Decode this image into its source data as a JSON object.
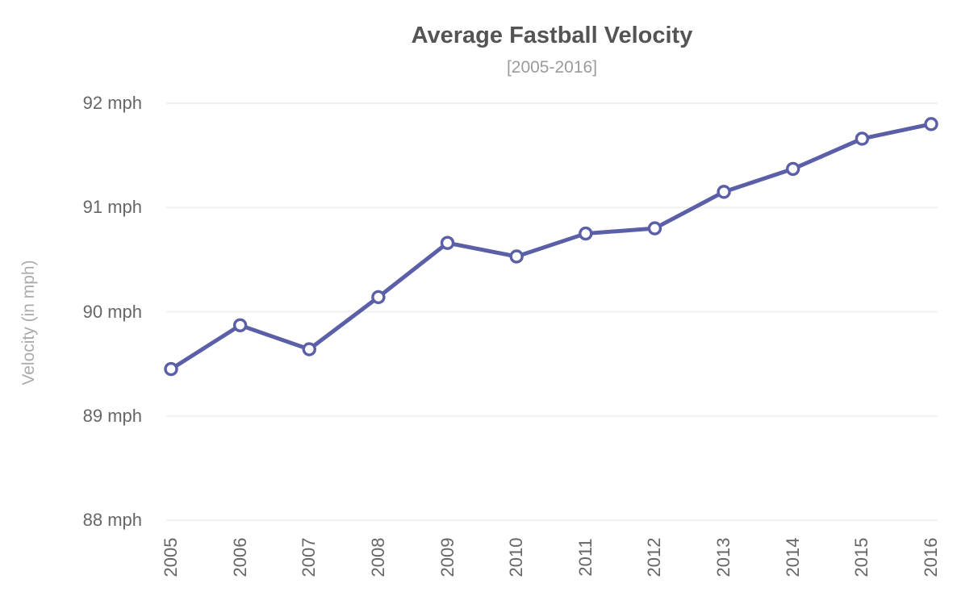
{
  "chart_data": {
    "type": "line",
    "title": "Average Fastball Velocity",
    "subtitle": "[2005-2016]",
    "xlabel": "",
    "ylabel": "Velocity (in mph)",
    "categories": [
      "2005",
      "2006",
      "2007",
      "2008",
      "2009",
      "2010",
      "2011",
      "2012",
      "2013",
      "2014",
      "2015",
      "2016"
    ],
    "series": [
      {
        "name": "Average Fastball Velocity",
        "values": [
          89.45,
          89.87,
          89.64,
          90.14,
          90.66,
          90.53,
          90.75,
          90.8,
          91.15,
          91.37,
          91.66,
          91.8
        ]
      }
    ],
    "ylim": [
      88,
      92
    ],
    "yticks": [
      88,
      89,
      90,
      91,
      92
    ],
    "ytick_format": "{v} mph",
    "grid": true,
    "legend": "none",
    "colors": {
      "line": "#5a5fa8",
      "marker_fill": "#ffffff",
      "marker_stroke": "#5a5fa8",
      "gridline": "#f0f0f0",
      "title_text": "#545454",
      "subtitle_text": "#9b9b9b",
      "tick_text": "#666666",
      "axis_title_text": "#ababab"
    }
  }
}
